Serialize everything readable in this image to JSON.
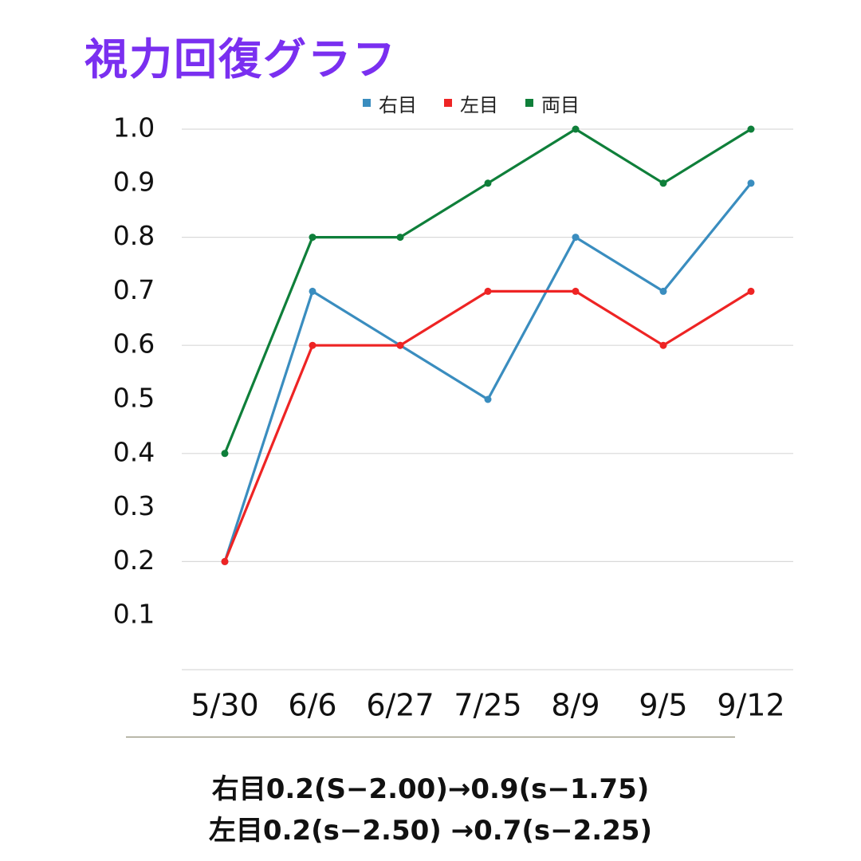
{
  "title": "視力回復グラフ",
  "chart_data": {
    "type": "line",
    "categories": [
      "5/30",
      "6/6",
      "6/27",
      "7/25",
      "8/9",
      "9/5",
      "9/12"
    ],
    "y_ticks": [
      "1.0",
      "0.9",
      "0.8",
      "0.7",
      "0.6",
      "0.5",
      "0.4",
      "0.3",
      "0.2",
      "0.1"
    ],
    "ylim": [
      0.0,
      1.0
    ],
    "grid": true,
    "legend_position": "top",
    "series": [
      {
        "name": "右目",
        "color": "#3a8dbf",
        "values": [
          0.2,
          0.7,
          0.6,
          0.5,
          0.8,
          0.7,
          0.9
        ]
      },
      {
        "name": "左目",
        "color": "#ee2424",
        "values": [
          0.2,
          0.6,
          0.6,
          0.7,
          0.7,
          0.6,
          0.7
        ]
      },
      {
        "name": "両目",
        "color": "#0f7f3a",
        "values": [
          0.4,
          0.8,
          0.8,
          0.9,
          1.0,
          0.9,
          1.0
        ]
      }
    ]
  },
  "notes": [
    "右目0.2(S−2.00)→0.9(s−1.75)",
    "左目0.2(s−2.50) →0.7(s−2.25)"
  ]
}
